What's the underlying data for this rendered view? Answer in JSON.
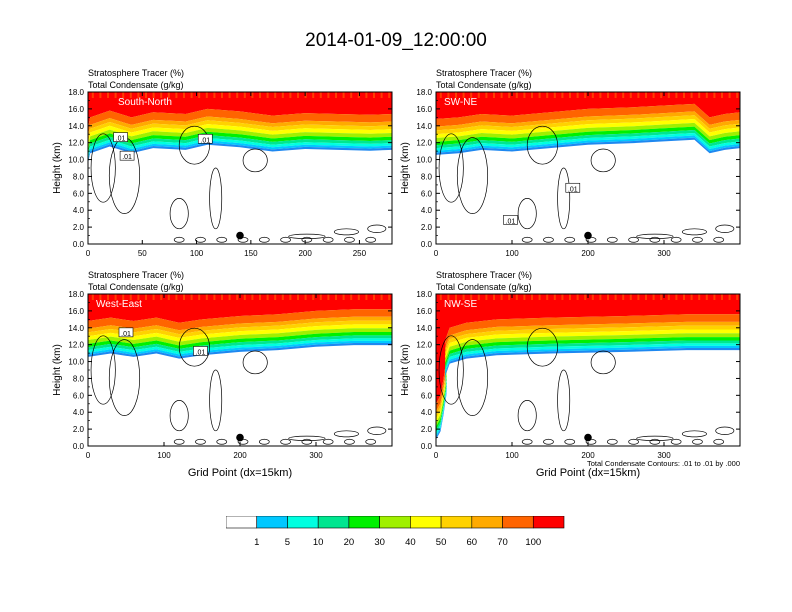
{
  "figure": {
    "title": "2014-01-09_12:00:00",
    "footnote": "Total Condensate Contours: .01 to .01 by .000"
  },
  "colors": {
    "levels": [
      "#ffffff",
      "#1e88f0",
      "#00c8ff",
      "#00ffe0",
      "#00e690",
      "#00f000",
      "#a0f000",
      "#ffff00",
      "#ffd200",
      "#ffaa00",
      "#ff6400",
      "#ff0000"
    ],
    "contour": "#000000"
  },
  "colorbar": {
    "labels": [
      "1",
      "5",
      "10",
      "20",
      "30",
      "40",
      "50",
      "60",
      "70",
      "100"
    ]
  },
  "chart_data": [
    {
      "type": "heatmap",
      "label": "South-North",
      "header": [
        "Stratosphere Tracer   (%)",
        "Total Condensate   (g/kg)"
      ],
      "ylabel": "Height (km)",
      "xlabel": "",
      "xlim": [
        0,
        280
      ],
      "ylim": [
        0,
        18
      ],
      "xticks": [
        0,
        50,
        100,
        150,
        200,
        250
      ],
      "yticks": [
        0,
        2,
        4,
        6,
        8,
        10,
        12,
        14,
        16,
        18
      ],
      "ytick_labels": [
        "0.0",
        "2.0",
        "4.0",
        "6.0",
        "8.0",
        "10.0",
        "12.0",
        "14.0",
        "16.0",
        "18.0"
      ],
      "tropopause": [
        [
          0,
          13.8
        ],
        [
          2,
          15.0
        ],
        [
          20,
          15.8
        ],
        [
          40,
          15.0
        ],
        [
          60,
          15.6
        ],
        [
          90,
          15.4
        ],
        [
          110,
          16.0
        ],
        [
          140,
          15.7
        ],
        [
          170,
          15.2
        ],
        [
          200,
          15.5
        ],
        [
          230,
          15.4
        ],
        [
          260,
          15.3
        ],
        [
          280,
          15.4
        ]
      ],
      "contour_labels": [
        {
          "text": ".01",
          "x": 30,
          "y": 12.6
        },
        {
          "text": ".01",
          "x": 36,
          "y": 10.4
        },
        {
          "text": ".01",
          "x": 108,
          "y": 12.4
        }
      ],
      "marker": {
        "x": 140,
        "y": 1.0
      }
    },
    {
      "type": "heatmap",
      "label": "SW-NE",
      "header": [
        "Stratosphere Tracer   (%)",
        "Total Condensate   (g/kg)"
      ],
      "ylabel": "Height (km)",
      "xlabel": "",
      "xlim": [
        0,
        400
      ],
      "ylim": [
        0,
        18
      ],
      "xticks": [
        0,
        100,
        200,
        300
      ],
      "yticks": [
        0,
        2,
        4,
        6,
        8,
        10,
        12,
        14,
        16,
        18
      ],
      "ytick_labels": [
        "0.0",
        "2.0",
        "4.0",
        "6.0",
        "8.0",
        "10.0",
        "12.0",
        "14.0",
        "16.0",
        "18.0"
      ],
      "tropopause": [
        [
          0,
          14.8
        ],
        [
          30,
          15.0
        ],
        [
          60,
          15.4
        ],
        [
          100,
          15.2
        ],
        [
          150,
          15.6
        ],
        [
          200,
          16.0
        ],
        [
          260,
          16.2
        ],
        [
          300,
          16.4
        ],
        [
          340,
          16.6
        ],
        [
          360,
          15.0
        ],
        [
          380,
          15.4
        ],
        [
          400,
          15.6
        ]
      ],
      "contour_labels": [
        {
          "text": ".01",
          "x": 180,
          "y": 6.6
        },
        {
          "text": ".01",
          "x": 98,
          "y": 2.8
        }
      ],
      "marker": {
        "x": 200,
        "y": 1.0
      }
    },
    {
      "type": "heatmap",
      "label": "West-East",
      "header": [
        "Stratosphere Tracer   (%)",
        "Total Condensate   (g/kg)"
      ],
      "ylabel": "Height (km)",
      "xlabel": "Grid Point (dx=15km)",
      "xlim": [
        0,
        400
      ],
      "ylim": [
        0,
        18
      ],
      "xticks": [
        0,
        100,
        200,
        300
      ],
      "yticks": [
        0,
        2,
        4,
        6,
        8,
        10,
        12,
        14,
        16,
        18
      ],
      "ytick_labels": [
        "0.0",
        "2.0",
        "4.0",
        "6.0",
        "8.0",
        "10.0",
        "12.0",
        "14.0",
        "16.0",
        "18.0"
      ],
      "tropopause": [
        [
          0,
          14.8
        ],
        [
          30,
          15.2
        ],
        [
          60,
          14.8
        ],
        [
          90,
          15.2
        ],
        [
          120,
          14.6
        ],
        [
          150,
          15.0
        ],
        [
          200,
          15.4
        ],
        [
          250,
          15.6
        ],
        [
          300,
          16.0
        ],
        [
          350,
          16.2
        ],
        [
          400,
          16.2
        ]
      ],
      "contour_labels": [
        {
          "text": ".01",
          "x": 50,
          "y": 13.4
        },
        {
          "text": ".01",
          "x": 148,
          "y": 11.2
        }
      ],
      "marker": {
        "x": 200,
        "y": 1.0
      }
    },
    {
      "type": "heatmap",
      "label": "NW-SE",
      "header": [
        "Stratosphere Tracer   (%)",
        "Total Condensate   (g/kg)"
      ],
      "ylabel": "Height (km)",
      "xlabel": "Grid Point (dx=15km)",
      "xlim": [
        0,
        400
      ],
      "ylim": [
        0,
        18
      ],
      "xticks": [
        0,
        100,
        200,
        300
      ],
      "yticks": [
        0,
        2,
        4,
        6,
        8,
        10,
        12,
        14,
        16,
        18
      ],
      "ytick_labels": [
        "0.0",
        "2.0",
        "4.0",
        "6.0",
        "8.0",
        "10.0",
        "12.0",
        "14.0",
        "16.0",
        "18.0"
      ],
      "tropopause": [
        [
          0,
          5.0
        ],
        [
          6,
          6.0
        ],
        [
          10,
          8.0
        ],
        [
          14,
          10.5
        ],
        [
          12,
          12.5
        ],
        [
          18,
          14.0
        ],
        [
          40,
          14.6
        ],
        [
          80,
          15.0
        ],
        [
          150,
          15.2
        ],
        [
          250,
          15.4
        ],
        [
          330,
          15.6
        ],
        [
          400,
          15.6
        ]
      ],
      "contour_labels": [],
      "marker": {
        "x": 200,
        "y": 1.0
      }
    }
  ]
}
